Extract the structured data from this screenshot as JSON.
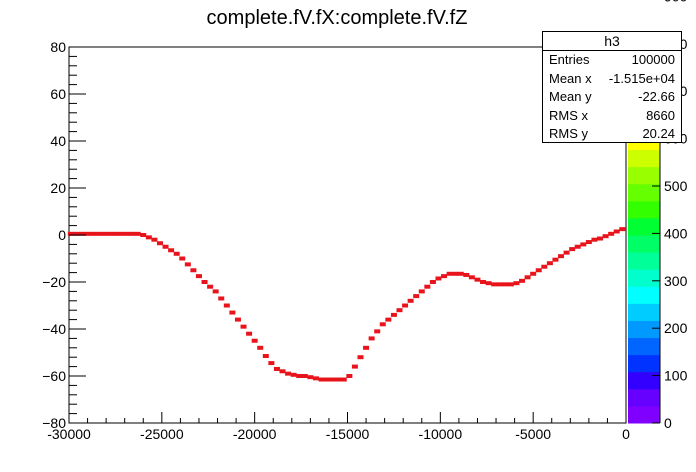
{
  "chart_data": {
    "type": "scatter",
    "title": "complete.fV.fX:complete.fV.fZ",
    "xlabel": "",
    "ylabel": "",
    "xlim": [
      -30000,
      0
    ],
    "ylim": [
      -80,
      80
    ],
    "x_ticks": [
      -30000,
      -25000,
      -20000,
      -15000,
      -10000,
      -5000,
      0
    ],
    "x_tick_labels": [
      "-30000",
      "-25000",
      "-20000",
      "-15000",
      "-10000",
      "-5000",
      "0"
    ],
    "y_ticks": [
      -80,
      -60,
      -40,
      -20,
      0,
      20,
      40,
      60,
      80
    ],
    "y_tick_labels": [
      "−80",
      "−60",
      "−40",
      "−20",
      "0",
      "20",
      "40",
      "60",
      "80"
    ],
    "marker_color": "#e8141b",
    "points": [
      [
        -29900,
        0.5
      ],
      [
        -29600,
        0.5
      ],
      [
        -29300,
        0.5
      ],
      [
        -29000,
        0.5
      ],
      [
        -28700,
        0.5
      ],
      [
        -28400,
        0.5
      ],
      [
        -28100,
        0.5
      ],
      [
        -27800,
        0.5
      ],
      [
        -27500,
        0.5
      ],
      [
        -27200,
        0.5
      ],
      [
        -26900,
        0.5
      ],
      [
        -26600,
        0.5
      ],
      [
        -26300,
        0.5
      ],
      [
        -26000,
        0
      ],
      [
        -25700,
        -1
      ],
      [
        -25400,
        -2
      ],
      [
        -25100,
        -3.5
      ],
      [
        -24800,
        -5
      ],
      [
        -24500,
        -6.5
      ],
      [
        -24200,
        -8
      ],
      [
        -23900,
        -10
      ],
      [
        -23600,
        -12.5
      ],
      [
        -23300,
        -15
      ],
      [
        -23000,
        -17.5
      ],
      [
        -22700,
        -20
      ],
      [
        -22400,
        -22
      ],
      [
        -22100,
        -24
      ],
      [
        -21800,
        -27
      ],
      [
        -21500,
        -30
      ],
      [
        -21200,
        -33
      ],
      [
        -20900,
        -36
      ],
      [
        -20600,
        -39
      ],
      [
        -20300,
        -42
      ],
      [
        -20000,
        -45
      ],
      [
        -19700,
        -48
      ],
      [
        -19400,
        -51.5
      ],
      [
        -19100,
        -54.5
      ],
      [
        -18800,
        -57
      ],
      [
        -18500,
        -58
      ],
      [
        -18200,
        -59
      ],
      [
        -17900,
        -59.5
      ],
      [
        -17600,
        -60
      ],
      [
        -17300,
        -60
      ],
      [
        -17000,
        -60.5
      ],
      [
        -16700,
        -61
      ],
      [
        -16400,
        -61.5
      ],
      [
        -16100,
        -61.5
      ],
      [
        -15800,
        -61.5
      ],
      [
        -15500,
        -61.5
      ],
      [
        -15200,
        -61.5
      ],
      [
        -14900,
        -60
      ],
      [
        -14600,
        -56
      ],
      [
        -14300,
        -52
      ],
      [
        -14000,
        -48
      ],
      [
        -13700,
        -44
      ],
      [
        -13400,
        -41
      ],
      [
        -13100,
        -38
      ],
      [
        -12800,
        -36
      ],
      [
        -12500,
        -34
      ],
      [
        -12200,
        -32
      ],
      [
        -11900,
        -30
      ],
      [
        -11600,
        -28
      ],
      [
        -11300,
        -26
      ],
      [
        -11000,
        -24
      ],
      [
        -10700,
        -22
      ],
      [
        -10400,
        -20
      ],
      [
        -10100,
        -18.5
      ],
      [
        -9800,
        -17.5
      ],
      [
        -9500,
        -16.5
      ],
      [
        -9200,
        -16.5
      ],
      [
        -8900,
        -16.5
      ],
      [
        -8600,
        -17
      ],
      [
        -8300,
        -18
      ],
      [
        -8000,
        -19
      ],
      [
        -7700,
        -20
      ],
      [
        -7400,
        -20.5
      ],
      [
        -7100,
        -21
      ],
      [
        -6800,
        -21
      ],
      [
        -6500,
        -21
      ],
      [
        -6200,
        -21
      ],
      [
        -5900,
        -20.5
      ],
      [
        -5600,
        -19.5
      ],
      [
        -5300,
        -18
      ],
      [
        -5000,
        -16.5
      ],
      [
        -4700,
        -15
      ],
      [
        -4400,
        -13.5
      ],
      [
        -4100,
        -12
      ],
      [
        -3800,
        -10.5
      ],
      [
        -3500,
        -9
      ],
      [
        -3200,
        -7.5
      ],
      [
        -2900,
        -6
      ],
      [
        -2600,
        -5
      ],
      [
        -2300,
        -4
      ],
      [
        -2000,
        -3
      ],
      [
        -1700,
        -2
      ],
      [
        -1400,
        -1.5
      ],
      [
        -1100,
        -0.5
      ],
      [
        -800,
        0.5
      ],
      [
        -500,
        1.5
      ],
      [
        -200,
        2.5
      ]
    ]
  },
  "stats": {
    "title": "h3",
    "rows": [
      {
        "label": "Entries",
        "value": "100000"
      },
      {
        "label": "Mean x",
        "value": "-1.515e+04"
      },
      {
        "label": "Mean y",
        "value": "-22.66"
      },
      {
        "label": "RMS x",
        "value": "8660"
      },
      {
        "label": "RMS y",
        "value": "20.24"
      }
    ]
  },
  "palette": {
    "tick_labels": [
      "0",
      "100",
      "200",
      "300",
      "400",
      "500",
      "600",
      "700",
      "800",
      "900",
      "1000"
    ],
    "colors": [
      "#7f00ff",
      "#6600ff",
      "#3300ff",
      "#0033ff",
      "#0066ff",
      "#0099ff",
      "#00ccff",
      "#00ffff",
      "#00ffcc",
      "#00ff99",
      "#00ff66",
      "#00ff33",
      "#33ff00",
      "#66ff00",
      "#99ff00",
      "#ccff00",
      "#ffff00",
      "#ffcc00",
      "#ff9900",
      "#ff6600",
      "#ff3300",
      "#ff0000"
    ]
  }
}
